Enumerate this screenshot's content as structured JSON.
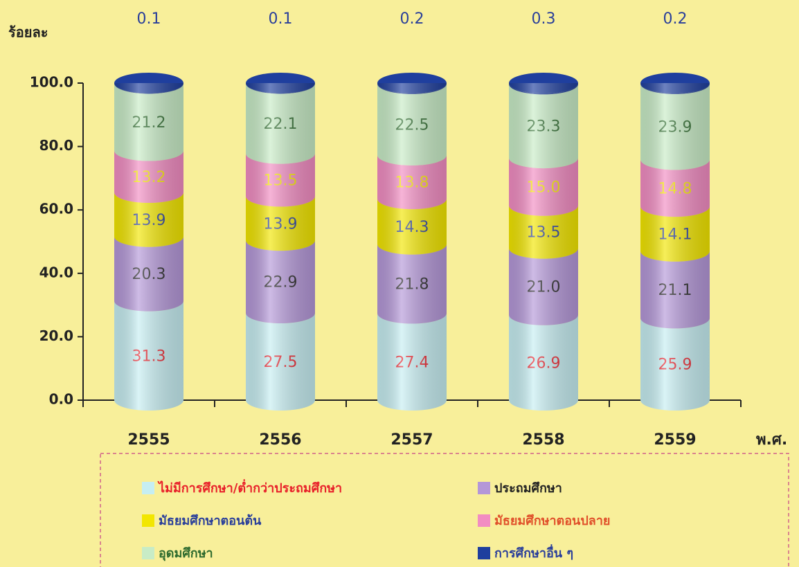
{
  "chart_data": {
    "type": "stacked_cylinder",
    "y_label": "ร้อยละ",
    "x_label": "พ.ศ.",
    "categories": [
      "2555",
      "2556",
      "2557",
      "2558",
      "2559"
    ],
    "series": [
      {
        "name": "ไม่มีการศึกษา/ต่ำกว่าประถมศึกษา",
        "color": "#c6eef2",
        "label_color": "#e8202a",
        "legend_text_color": "#e8202a",
        "values": [
          31.3,
          27.5,
          27.4,
          26.9,
          25.9
        ]
      },
      {
        "name": "ประถมศึกษา",
        "color": "#b497d8",
        "label_color": "#222222",
        "legend_text_color": "#222222",
        "values": [
          20.3,
          22.9,
          21.8,
          21.0,
          21.1
        ],
        "value_labels": [
          "20.3",
          "22.9",
          "21.8",
          "21.0",
          "21.1"
        ]
      },
      {
        "name": "มัธยมศึกษาตอนต้น",
        "color": "#f2e600",
        "label_color": "#2a3f9a",
        "legend_text_color": "#2a3f9a",
        "values": [
          13.9,
          13.9,
          14.3,
          13.5,
          14.1
        ]
      },
      {
        "name": "มัธยมศึกษาตอนปลาย",
        "color": "#f28cc2",
        "label_color": "#f6e600",
        "legend_text_color": "#e0502a",
        "values": [
          13.2,
          13.5,
          13.8,
          15.0,
          14.8
        ],
        "value_labels": [
          "13.2",
          "13.5",
          "13.8",
          "15.0",
          "14.8"
        ]
      },
      {
        "name": "อุดมศึกษา",
        "color": "#c8ecc6",
        "label_color": "#2e6b2e",
        "legend_text_color": "#2e6b2e",
        "values": [
          21.2,
          22.1,
          22.5,
          23.3,
          23.9
        ]
      },
      {
        "name": "การศึกษาอื่น ๆ",
        "color": "#1f3f9e",
        "label_color": "#2a3f9a",
        "legend_text_color": "#2a3f9a",
        "values": [
          0.1,
          0.1,
          0.2,
          0.3,
          0.2
        ]
      }
    ],
    "ylim": [
      0,
      100
    ],
    "yticks": [
      {
        "value": 0,
        "label": "0.0"
      },
      {
        "value": 20,
        "label": "20.0"
      },
      {
        "value": 40,
        "label": "40.0"
      },
      {
        "value": 60,
        "label": "60.0"
      },
      {
        "value": 80,
        "label": "80.0"
      },
      {
        "value": 100,
        "label": "100.0"
      }
    ],
    "grid": false
  }
}
